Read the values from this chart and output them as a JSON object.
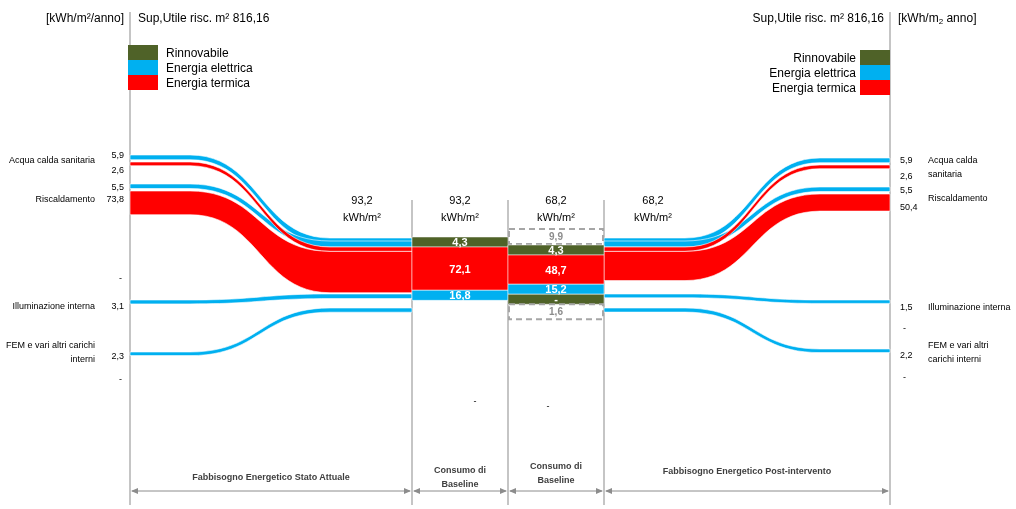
{
  "chart_data": [
    {
      "type": "other",
      "ylabel": "[kWh/m²/anno]",
      "y2label": "[kWh/m$_{2}$ anno]",
      "categories": [
        "Acqua calda sanitaria",
        "Riscaldamento",
        "Illuminazione interna",
        "FEM e vari altri carichi interni"
      ],
      "series": [
        {
          "axis": "y",
          "color": "#00b0f0",
          "values": [
            5.9,
            5.5,
            3.1,
            2.3
          ],
          "value_labels": [
            "5,9",
            "5,5",
            "3,1",
            "2,3"
          ]
        },
        {
          "axis": "y",
          "color": "#ff0000",
          "values": [
            2.6,
            73.8,
            null,
            null
          ],
          "value_labels": [
            "2,6",
            "73,8",
            null,
            null
          ]
        },
        {
          "axis": "y2",
          "color": "#00b0f0",
          "values": [
            5.9,
            5.5,
            1.5,
            2.2
          ],
          "value_labels": [
            "5,9",
            "5,5",
            "1,5",
            "2,2"
          ]
        },
        {
          "axis": "y2",
          "color": "#ff0000",
          "values": [
            2.6,
            50.4,
            null,
            null
          ],
          "value_labels": [
            "2,6",
            "50,4",
            null,
            null
          ]
        }
      ],
      "annotations": [
        "Sup,Utile risc. m² 816,16",
        "Sup,Utile risc. m² 816,16",
        "93,2 kWh/m²",
        "68,2 kWh/m²",
        "Fabbisogno Energetico Stato Attuale",
        "Fabbisogno Energetico Post-intervento",
        "-",
        "-",
        "-",
        "-"
      ]
    },
    {
      "type": "other",
      "legend": "top",
      "categories": [
        "Consumo di Baseline",
        "Consumo di Baseline"
      ],
      "series": [
        {
          "color": "#a6a6a6",
          "line_style": "dashed",
          "values": [
            null,
            9.9
          ],
          "value_labels": [
            null,
            "9,9"
          ]
        },
        {
          "name": "Rinnovabile",
          "color": "#4f6228",
          "values": [
            4.3,
            4.3
          ],
          "value_labels": [
            "4,3",
            "4,3"
          ]
        },
        {
          "name": "Energia termica",
          "color": "#ff0000",
          "values": [
            72.1,
            48.7
          ],
          "value_labels": [
            "72,1",
            "48,7"
          ]
        },
        {
          "name": "Energia elettrica",
          "color": "#00b0f0",
          "values": [
            16.8,
            15.2
          ],
          "value_labels": [
            "16,8",
            "15,2"
          ]
        },
        {
          "color": "#4f6228",
          "values": [
            null,
            null
          ],
          "value_labels": [
            null,
            "-"
          ]
        },
        {
          "color": "#a6a6a6",
          "line_style": "dashed",
          "values": [
            null,
            1.6
          ],
          "value_labels": [
            null,
            "1,6"
          ]
        }
      ],
      "totals": [
        "93,2 kWh/m²",
        "68,2 kWh/m²"
      ],
      "annotations": [
        "-",
        "-"
      ]
    }
  ]
}
